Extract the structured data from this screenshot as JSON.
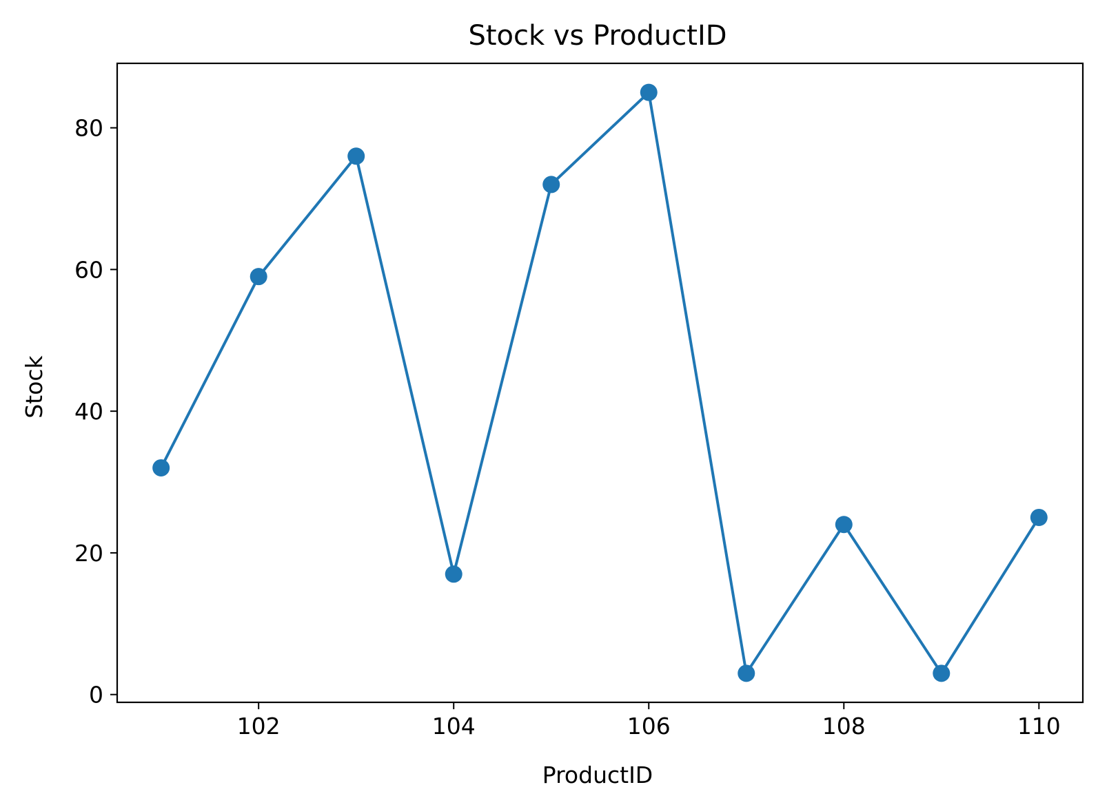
{
  "chart_data": {
    "type": "line",
    "title": "Stock vs ProductID",
    "xlabel": "ProductID",
    "ylabel": "Stock",
    "x": [
      101,
      102,
      103,
      104,
      105,
      106,
      107,
      108,
      109,
      110
    ],
    "series": [
      {
        "values": [
          32,
          59,
          76,
          17,
          72,
          85,
          3,
          24,
          3,
          25
        ],
        "color": "#1f77b4",
        "marker": "circle"
      }
    ],
    "xlim": [
      100.55,
      110.45
    ],
    "ylim": [
      -1.1,
      89.1
    ],
    "xticks": [
      102,
      104,
      106,
      108,
      110
    ],
    "xtick_labels": [
      "102",
      "104",
      "106",
      "108",
      "110"
    ],
    "yticks": [
      0,
      20,
      40,
      60,
      80
    ],
    "ytick_labels": [
      "0",
      "20",
      "40",
      "60",
      "80"
    ],
    "grid": false,
    "legend": "none"
  }
}
